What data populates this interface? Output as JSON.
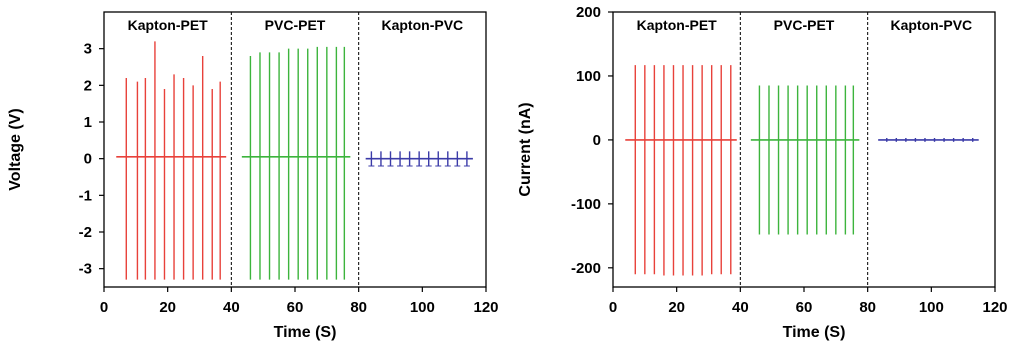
{
  "chart_data": [
    {
      "type": "line",
      "xlabel": "Time (S)",
      "ylabel": "Voltage (V)",
      "xlim": [
        0,
        120
      ],
      "ylim": [
        -3.5,
        4
      ],
      "xticks": [
        0,
        20,
        40,
        60,
        80,
        100,
        120
      ],
      "yticks": [
        -3,
        -2,
        -1,
        0,
        1,
        2,
        3
      ],
      "segments": [
        {
          "name": "Kapton-PET",
          "x_range": [
            0,
            40
          ],
          "color": "#e8413a"
        },
        {
          "name": "PVC-PET",
          "x_range": [
            40,
            80
          ],
          "color": "#3cb43c"
        },
        {
          "name": "Kapton-PVC",
          "x_range": [
            80,
            120
          ],
          "color": "#3b3ba8"
        }
      ],
      "series": [
        {
          "segment": "Kapton-PET",
          "baseline": 0.05,
          "pulses": [
            {
              "x": 7,
              "peak": 2.2,
              "trough": -3.3
            },
            {
              "x": 10.5,
              "peak": 2.1,
              "trough": -3.3
            },
            {
              "x": 13,
              "peak": 2.2,
              "trough": -3.3
            },
            {
              "x": 16,
              "peak": 3.2,
              "trough": -3.3
            },
            {
              "x": 19,
              "peak": 1.9,
              "trough": -3.3
            },
            {
              "x": 22,
              "peak": 2.3,
              "trough": -3.3
            },
            {
              "x": 25,
              "peak": 2.2,
              "trough": -3.3
            },
            {
              "x": 28,
              "peak": 2.0,
              "trough": -3.3
            },
            {
              "x": 31,
              "peak": 2.8,
              "trough": -3.3
            },
            {
              "x": 34,
              "peak": 1.9,
              "trough": -3.3
            },
            {
              "x": 36.5,
              "peak": 2.1,
              "trough": -3.3
            }
          ]
        },
        {
          "segment": "PVC-PET",
          "baseline": 0.05,
          "pulses": [
            {
              "x": 46,
              "peak": 2.8,
              "trough": -3.3
            },
            {
              "x": 49,
              "peak": 2.9,
              "trough": -3.3
            },
            {
              "x": 52,
              "peak": 2.9,
              "trough": -3.3
            },
            {
              "x": 55,
              "peak": 2.9,
              "trough": -3.3
            },
            {
              "x": 58,
              "peak": 3.0,
              "trough": -3.3
            },
            {
              "x": 61,
              "peak": 3.0,
              "trough": -3.3
            },
            {
              "x": 64,
              "peak": 3.0,
              "trough": -3.3
            },
            {
              "x": 67,
              "peak": 3.05,
              "trough": -3.3
            },
            {
              "x": 70,
              "peak": 3.05,
              "trough": -3.3
            },
            {
              "x": 73,
              "peak": 3.05,
              "trough": -3.3
            },
            {
              "x": 75.5,
              "peak": 3.05,
              "trough": -3.3
            }
          ]
        },
        {
          "segment": "Kapton-PVC",
          "baseline": 0.0,
          "pulses": [
            {
              "x": 84,
              "peak": 0.2,
              "trough": -0.2
            },
            {
              "x": 87,
              "peak": 0.2,
              "trough": -0.2
            },
            {
              "x": 90,
              "peak": 0.2,
              "trough": -0.2
            },
            {
              "x": 93,
              "peak": 0.2,
              "trough": -0.2
            },
            {
              "x": 96,
              "peak": 0.2,
              "trough": -0.2
            },
            {
              "x": 99,
              "peak": 0.2,
              "trough": -0.2
            },
            {
              "x": 102,
              "peak": 0.2,
              "trough": -0.2
            },
            {
              "x": 105,
              "peak": 0.2,
              "trough": -0.2
            },
            {
              "x": 108,
              "peak": 0.2,
              "trough": -0.2
            },
            {
              "x": 111,
              "peak": 0.2,
              "trough": -0.2
            },
            {
              "x": 114,
              "peak": 0.2,
              "trough": -0.2
            }
          ]
        }
      ]
    },
    {
      "type": "line",
      "xlabel": "Time (S)",
      "ylabel": "Current (nA)",
      "xlim": [
        0,
        120
      ],
      "ylim": [
        -230,
        200
      ],
      "xticks": [
        0,
        20,
        40,
        60,
        80,
        100,
        120
      ],
      "yticks": [
        -200,
        -100,
        0,
        100,
        200
      ],
      "segments": [
        {
          "name": "Kapton-PET",
          "x_range": [
            0,
            40
          ],
          "color": "#e8413a"
        },
        {
          "name": "PVC-PET",
          "x_range": [
            40,
            80
          ],
          "color": "#3cb43c"
        },
        {
          "name": "Kapton-PVC",
          "x_range": [
            80,
            120
          ],
          "color": "#3b3ba8"
        }
      ],
      "series": [
        {
          "segment": "Kapton-PET",
          "baseline": 0,
          "pulses": [
            {
              "x": 7,
              "peak": 117,
              "trough": -210
            },
            {
              "x": 10,
              "peak": 117,
              "trough": -210
            },
            {
              "x": 13,
              "peak": 117,
              "trough": -210
            },
            {
              "x": 16,
              "peak": 117,
              "trough": -212
            },
            {
              "x": 19,
              "peak": 117,
              "trough": -212
            },
            {
              "x": 22,
              "peak": 117,
              "trough": -212
            },
            {
              "x": 25,
              "peak": 117,
              "trough": -212
            },
            {
              "x": 28,
              "peak": 117,
              "trough": -212
            },
            {
              "x": 31,
              "peak": 117,
              "trough": -210
            },
            {
              "x": 34,
              "peak": 117,
              "trough": -210
            },
            {
              "x": 37,
              "peak": 117,
              "trough": -210
            }
          ]
        },
        {
          "segment": "PVC-PET",
          "baseline": 0,
          "pulses": [
            {
              "x": 46,
              "peak": 85,
              "trough": -148
            },
            {
              "x": 49,
              "peak": 85,
              "trough": -148
            },
            {
              "x": 52,
              "peak": 85,
              "trough": -148
            },
            {
              "x": 55,
              "peak": 85,
              "trough": -148
            },
            {
              "x": 58,
              "peak": 85,
              "trough": -148
            },
            {
              "x": 61,
              "peak": 85,
              "trough": -148
            },
            {
              "x": 64,
              "peak": 85,
              "trough": -148
            },
            {
              "x": 67,
              "peak": 85,
              "trough": -148
            },
            {
              "x": 70,
              "peak": 85,
              "trough": -148
            },
            {
              "x": 73,
              "peak": 85,
              "trough": -148
            },
            {
              "x": 75.5,
              "peak": 85,
              "trough": -148
            }
          ]
        },
        {
          "segment": "Kapton-PVC",
          "baseline": 0,
          "pulses": [
            {
              "x": 86,
              "peak": 3,
              "trough": -3
            },
            {
              "x": 89,
              "peak": 3,
              "trough": -3
            },
            {
              "x": 92,
              "peak": 3,
              "trough": -3
            },
            {
              "x": 95,
              "peak": 3,
              "trough": -3
            },
            {
              "x": 98,
              "peak": 3,
              "trough": -3
            },
            {
              "x": 101,
              "peak": 3,
              "trough": -3
            },
            {
              "x": 104,
              "peak": 3,
              "trough": -3
            },
            {
              "x": 107,
              "peak": 3,
              "trough": -3
            },
            {
              "x": 110,
              "peak": 3,
              "trough": -3
            },
            {
              "x": 113,
              "peak": 3,
              "trough": -3
            }
          ]
        }
      ]
    }
  ]
}
